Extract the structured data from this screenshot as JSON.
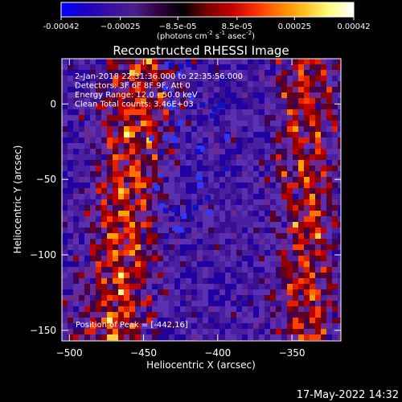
{
  "chart_data": {
    "type": "heatmap",
    "title": "Reconstructed RHESSI Image",
    "xlabel": "Heliocentric X (arcsec)",
    "ylabel": "Heliocentric Y (arcsec)",
    "xlim": [
      -505,
      -317
    ],
    "ylim": [
      -157,
      30
    ],
    "x_ticks": [
      -500,
      -450,
      -400,
      -350
    ],
    "y_ticks": [
      0,
      -50,
      -100,
      -150
    ],
    "colorbar": {
      "range": [
        -0.00042,
        0.00042
      ],
      "tick_values": [
        -0.00042,
        -0.00025,
        -8.5e-05,
        8.5e-05,
        0.00025,
        0.00042
      ],
      "tick_labels": [
        "-0.00042",
        "−0.00025",
        "−8.5e-05",
        "8.5e-05",
        "0.00025",
        "0.00042"
      ],
      "unit_html": "(photons cm<tspan dy=\"-5\" font-size=\"7\">-2</tspan><tspan dy=\"5\"> s</tspan><tspan dy=\"-5\" font-size=\"7\">-1</tspan><tspan dy=\"5\"> asec</tspan><tspan dy=\"-5\" font-size=\"7\">-2</tspan><tspan dy=\"5\">)</tspan>",
      "colors": [
        "#0000ff",
        "#1a00c0",
        "#3a10a0",
        "#4a2090",
        "#300040",
        "#000000",
        "#7a0000",
        "#c00000",
        "#ff3000",
        "#ff8000",
        "#ffc020",
        "#ffff80",
        "#ffffff"
      ]
    },
    "annotations": [
      "2-Jan-2018 22:31:36.000 to 22:35:56.000",
      "Detectors: 3F 6F 8F 9F, Att 0",
      "Energy Range: 12.0 - 50.0 keV",
      "Clean     Total counts: 3.46E+03"
    ],
    "peak_label": "Position of Peak = [-442,16]",
    "peak": [
      -442,
      16
    ],
    "grid": false
  },
  "timestamp": "17-May-2022 14:32"
}
